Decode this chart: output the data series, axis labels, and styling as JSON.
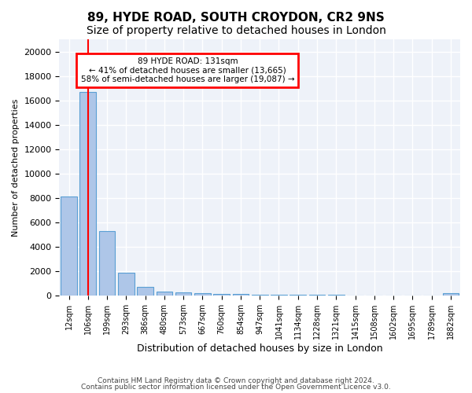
{
  "title1": "89, HYDE ROAD, SOUTH CROYDON, CR2 9NS",
  "title2": "Size of property relative to detached houses in London",
  "xlabel": "Distribution of detached houses by size in London",
  "ylabel": "Number of detached properties",
  "categories": [
    "12sqm",
    "106sqm",
    "199sqm",
    "293sqm",
    "386sqm",
    "480sqm",
    "573sqm",
    "667sqm",
    "760sqm",
    "854sqm",
    "947sqm",
    "1041sqm",
    "1134sqm",
    "1228sqm",
    "1321sqm",
    "1415sqm",
    "1508sqm",
    "1602sqm",
    "1695sqm",
    "1789sqm",
    "1882sqm"
  ],
  "values": [
    8100,
    16700,
    5300,
    1850,
    700,
    350,
    270,
    200,
    170,
    140,
    110,
    90,
    75,
    60,
    50,
    40,
    35,
    30,
    25,
    20,
    200
  ],
  "bar_color": "#aec6e8",
  "bar_edge_color": "#5a9fd4",
  "red_line_x": 1.0,
  "annotation_text": "89 HYDE ROAD: 131sqm\n← 41% of detached houses are smaller (13,665)\n58% of semi-detached houses are larger (19,087) →",
  "annotation_box_color": "white",
  "annotation_box_edge_color": "red",
  "ylim": [
    0,
    21000
  ],
  "yticks": [
    0,
    2000,
    4000,
    6000,
    8000,
    10000,
    12000,
    14000,
    16000,
    18000,
    20000
  ],
  "footer1": "Contains HM Land Registry data © Crown copyright and database right 2024.",
  "footer2": "Contains public sector information licensed under the Open Government Licence v3.0.",
  "bg_color": "#eef2f9",
  "grid_color": "white",
  "title_fontsize": 11,
  "subtitle_fontsize": 10
}
